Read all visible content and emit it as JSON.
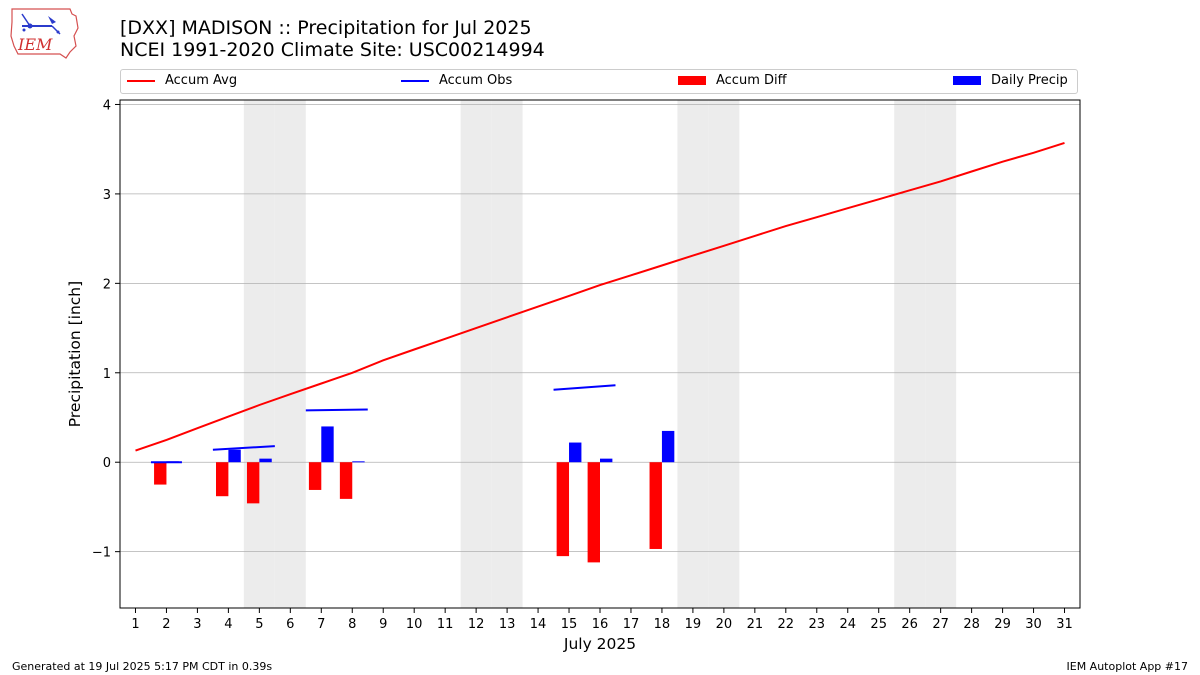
{
  "header": {
    "title_line1": "[DXX] MADISON :: Precipitation for Jul 2025",
    "title_line2": "NCEI 1991-2020 Climate Site: USC00214994",
    "logo_text": "IEM"
  },
  "legend": [
    {
      "label": "Accum Avg",
      "kind": "line",
      "color": "#ff0000"
    },
    {
      "label": "Accum Obs",
      "kind": "line",
      "color": "#0000ff"
    },
    {
      "label": "Accum Diff",
      "kind": "box",
      "color": "#ff0000"
    },
    {
      "label": "Daily Precip",
      "kind": "box",
      "color": "#0000ff"
    }
  ],
  "footer": {
    "left": "Generated at 19 Jul 2025 5:17 PM CDT in 0.39s",
    "right": "IEM Autoplot App #17"
  },
  "chart_data": {
    "type": "bar",
    "xlabel": "July 2025",
    "ylabel": "Precipitation [inch]",
    "xlim": [
      0.5,
      31.5
    ],
    "ylim": [
      -1.63,
      4.05
    ],
    "yticks": [
      -1,
      0,
      1,
      2,
      3,
      4
    ],
    "ytick_labels": [
      "−1",
      "0",
      "1",
      "2",
      "3",
      "4"
    ],
    "x": [
      1,
      2,
      3,
      4,
      5,
      6,
      7,
      8,
      9,
      10,
      11,
      12,
      13,
      14,
      15,
      16,
      17,
      18,
      19,
      20,
      21,
      22,
      23,
      24,
      25,
      26,
      27,
      28,
      29,
      30,
      31
    ],
    "weekend_days": [
      5,
      6,
      12,
      13,
      19,
      20,
      26,
      27
    ],
    "accum_avg": [
      0.13,
      0.25,
      0.38,
      0.51,
      0.64,
      0.76,
      0.88,
      1.0,
      1.14,
      1.26,
      1.38,
      1.5,
      1.62,
      1.74,
      1.86,
      1.98,
      2.09,
      2.2,
      2.31,
      2.42,
      2.53,
      2.64,
      2.74,
      2.84,
      2.94,
      3.04,
      3.14,
      3.25,
      3.36,
      3.46,
      3.57
    ],
    "accum_obs_segments": [
      {
        "days": [
          1.5,
          2.5
        ],
        "values": [
          0.0,
          0.0
        ]
      },
      {
        "days": [
          3.5,
          5.5
        ],
        "values": [
          0.14,
          0.18
        ]
      },
      {
        "days": [
          6.5,
          8.5
        ],
        "values": [
          0.58,
          0.59
        ]
      },
      {
        "days": [
          14.5,
          16.5
        ],
        "values": [
          0.81,
          0.86
        ]
      }
    ],
    "accum_diff": [
      {
        "day": 2,
        "value": -0.25
      },
      {
        "day": 4,
        "value": -0.38
      },
      {
        "day": 5,
        "value": -0.46
      },
      {
        "day": 7,
        "value": -0.31
      },
      {
        "day": 8,
        "value": -0.41
      },
      {
        "day": 15,
        "value": -1.05
      },
      {
        "day": 16,
        "value": -1.12
      },
      {
        "day": 18,
        "value": -0.97
      }
    ],
    "daily_precip": [
      {
        "day": 2,
        "value": 0.01
      },
      {
        "day": 4,
        "value": 0.14
      },
      {
        "day": 5,
        "value": 0.04
      },
      {
        "day": 7,
        "value": 0.4
      },
      {
        "day": 8,
        "value": 0.01
      },
      {
        "day": 15,
        "value": 0.22
      },
      {
        "day": 16,
        "value": 0.04
      },
      {
        "day": 18,
        "value": 0.35
      }
    ],
    "colors": {
      "accum_avg": "#ff0000",
      "accum_obs": "#0000ff",
      "accum_diff": "#ff0000",
      "daily_precip": "#0000ff",
      "weekend_shade": "#ececec",
      "grid": "#b0b0b0"
    }
  }
}
